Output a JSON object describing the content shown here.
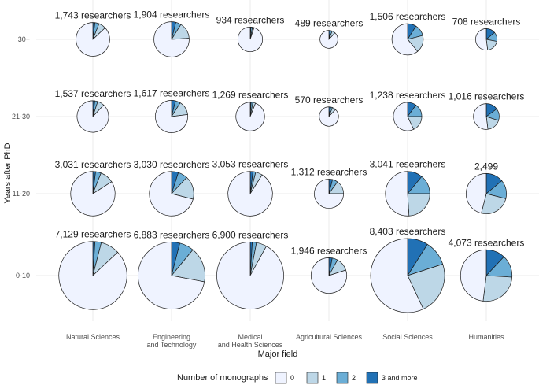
{
  "chart_data": {
    "type": "pie",
    "subtype": "pie-grid",
    "xlabel": "Major field",
    "ylabel": "Years after PhD",
    "columns": [
      {
        "key": "ns",
        "lines": [
          "Natural Sciences"
        ]
      },
      {
        "key": "et",
        "lines": [
          "Engineering",
          "and Technology"
        ]
      },
      {
        "key": "mhs",
        "lines": [
          "Medical",
          "and Health Sciences"
        ]
      },
      {
        "key": "as",
        "lines": [
          "Agricultural Sciences"
        ]
      },
      {
        "key": "ss",
        "lines": [
          "Social Sciences"
        ]
      },
      {
        "key": "hum",
        "lines": [
          "Humanities"
        ]
      }
    ],
    "rows": [
      "30+",
      "21-30",
      "11-20",
      "0-10"
    ],
    "legend": {
      "title": "Number of monographs",
      "entries": [
        {
          "label": "0",
          "color": "#eff3ff"
        },
        {
          "label": "1",
          "color": "#bdd7e7"
        },
        {
          "label": "2",
          "color": "#6baed6"
        },
        {
          "label": "3 and more",
          "color": "#2171b5"
        }
      ]
    },
    "cells": [
      {
        "row": "30+",
        "col": "ns",
        "total": 1743,
        "label": "1,743 researchers",
        "shares": [
          0.87,
          0.07,
          0.04,
          0.02
        ]
      },
      {
        "row": "30+",
        "col": "et",
        "total": 1904,
        "label": "1,904 researchers",
        "shares": [
          0.76,
          0.15,
          0.05,
          0.04
        ]
      },
      {
        "row": "30+",
        "col": "mhs",
        "total": 934,
        "label": "934 researchers",
        "shares": [
          0.95,
          0.02,
          0.02,
          0.01
        ]
      },
      {
        "row": "30+",
        "col": "as",
        "total": 489,
        "label": "489 researchers",
        "shares": [
          0.88,
          0.06,
          0.03,
          0.03
        ]
      },
      {
        "row": "30+",
        "col": "ss",
        "total": 1506,
        "label": "1,506 researchers",
        "shares": [
          0.61,
          0.18,
          0.12,
          0.09
        ]
      },
      {
        "row": "30+",
        "col": "hum",
        "total": 708,
        "label": "708 researchers",
        "shares": [
          0.52,
          0.2,
          0.14,
          0.14
        ]
      },
      {
        "row": "21-30",
        "col": "ns",
        "total": 1537,
        "label": "1,537 researchers",
        "shares": [
          0.88,
          0.07,
          0.03,
          0.02
        ]
      },
      {
        "row": "21-30",
        "col": "et",
        "total": 1617,
        "label": "1,617 researchers",
        "shares": [
          0.77,
          0.14,
          0.05,
          0.04
        ]
      },
      {
        "row": "21-30",
        "col": "mhs",
        "total": 1269,
        "label": "1,269 researchers",
        "shares": [
          0.94,
          0.03,
          0.02,
          0.01
        ]
      },
      {
        "row": "21-30",
        "col": "as",
        "total": 570,
        "label": "570 researchers",
        "shares": [
          0.88,
          0.06,
          0.03,
          0.03
        ]
      },
      {
        "row": "21-30",
        "col": "ss",
        "total": 1238,
        "label": "1,238 researchers",
        "shares": [
          0.57,
          0.18,
          0.15,
          0.1
        ]
      },
      {
        "row": "21-30",
        "col": "hum",
        "total": 1016,
        "label": "1,016 researchers",
        "shares": [
          0.52,
          0.18,
          0.15,
          0.15
        ]
      },
      {
        "row": "11-20",
        "col": "ns",
        "total": 3031,
        "label": "3,031 researchers",
        "shares": [
          0.84,
          0.1,
          0.04,
          0.02
        ]
      },
      {
        "row": "11-20",
        "col": "et",
        "total": 3030,
        "label": "3,030 researchers",
        "shares": [
          0.71,
          0.17,
          0.07,
          0.05
        ]
      },
      {
        "row": "11-20",
        "col": "mhs",
        "total": 3053,
        "label": "3,053 researchers",
        "shares": [
          0.91,
          0.05,
          0.02,
          0.02
        ]
      },
      {
        "row": "11-20",
        "col": "as",
        "total": 1312,
        "label": "1,312 researchers",
        "shares": [
          0.75,
          0.15,
          0.06,
          0.04
        ]
      },
      {
        "row": "11-20",
        "col": "ss",
        "total": 3041,
        "label": "3,041 researchers",
        "shares": [
          0.51,
          0.24,
          0.14,
          0.11
        ]
      },
      {
        "row": "11-20",
        "col": "hum",
        "total": 2499,
        "label": "2,499",
        "shares": [
          0.46,
          0.25,
          0.15,
          0.14
        ]
      },
      {
        "row": "0-10",
        "col": "ns",
        "total": 7129,
        "label": "7,129 researchers",
        "shares": [
          0.87,
          0.09,
          0.03,
          0.01
        ]
      },
      {
        "row": "0-10",
        "col": "et",
        "total": 6883,
        "label": "6,883 researchers",
        "shares": [
          0.72,
          0.17,
          0.07,
          0.04
        ]
      },
      {
        "row": "0-10",
        "col": "mhs",
        "total": 6900,
        "label": "6,900 researchers",
        "shares": [
          0.92,
          0.05,
          0.02,
          0.01
        ]
      },
      {
        "row": "0-10",
        "col": "as",
        "total": 1946,
        "label": "1,946 researchers",
        "shares": [
          0.8,
          0.12,
          0.05,
          0.03
        ]
      },
      {
        "row": "0-10",
        "col": "ss",
        "total": 8403,
        "label": "8,403 researchers",
        "shares": [
          0.57,
          0.23,
          0.11,
          0.09
        ]
      },
      {
        "row": "0-10",
        "col": "hum",
        "total": 4073,
        "label": "4,073 researchers",
        "shares": [
          0.48,
          0.26,
          0.14,
          0.12
        ]
      }
    ]
  }
}
